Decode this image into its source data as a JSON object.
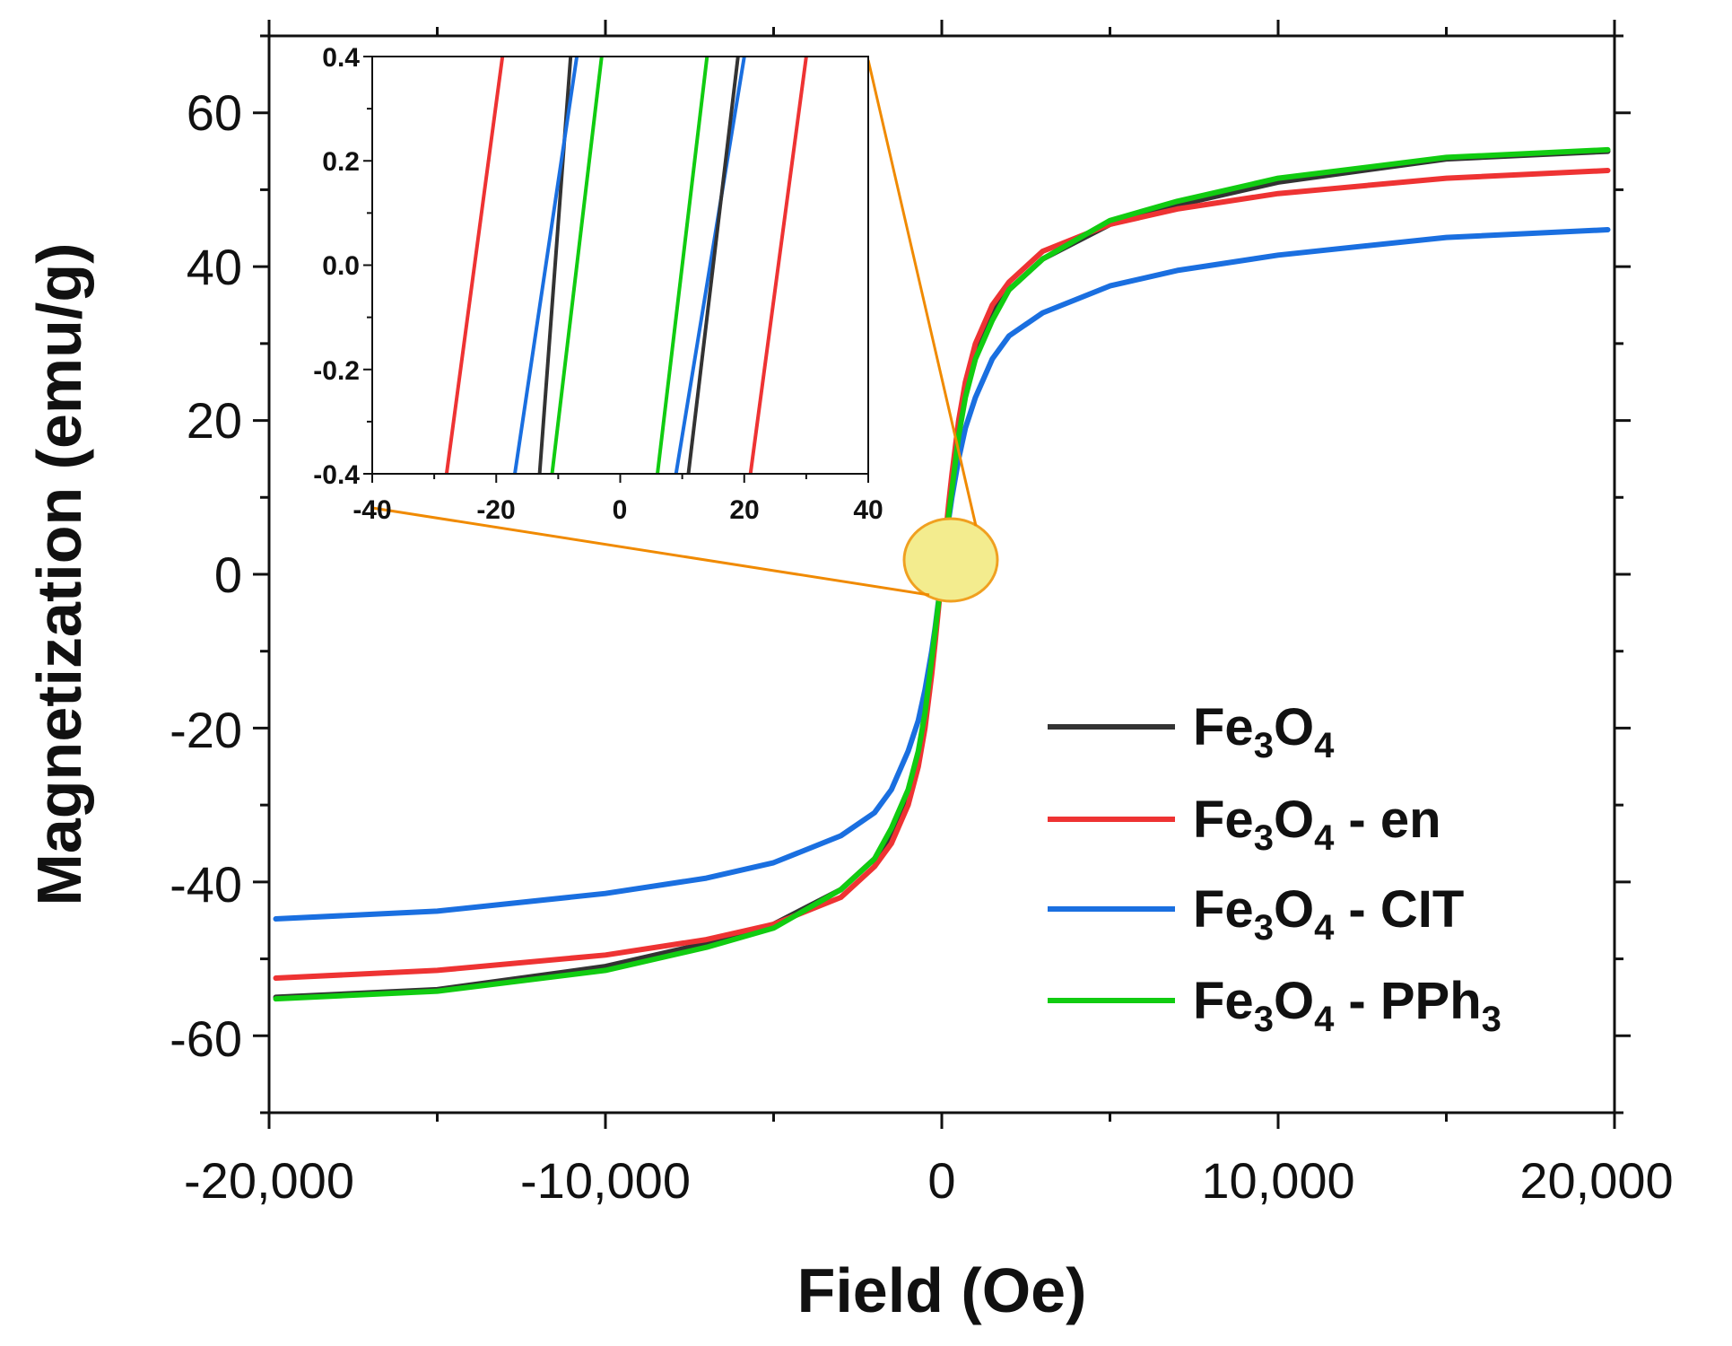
{
  "chart_data": {
    "type": "line",
    "title": "",
    "xlabel": "Field (Oe)",
    "ylabel": "Magnetization (emu/g)",
    "xlim": [
      -20000,
      20000
    ],
    "ylim": [
      -70,
      70
    ],
    "xticks": [
      -20000,
      -10000,
      0,
      10000,
      20000
    ],
    "xtick_labels": [
      "-20,000",
      "-10,000",
      "0",
      "10,000",
      "20,000"
    ],
    "yticks": [
      -60,
      -40,
      -20,
      0,
      20,
      40,
      60
    ],
    "ytick_labels": [
      "-60",
      "-40",
      "-20",
      "0",
      "20",
      "40",
      "60"
    ],
    "legend_position": "bottom-right",
    "grid": false,
    "series": [
      {
        "name": "Fe3O4",
        "label_parts": [
          "Fe",
          "3",
          "O",
          "4",
          ""
        ],
        "color": "#333333",
        "x": [
          -19800,
          -15000,
          -10000,
          -7000,
          -5000,
          -3000,
          -2000,
          -1500,
          -1000,
          -700,
          -500,
          -300,
          -200,
          -100,
          0,
          100,
          200,
          300,
          500,
          700,
          1000,
          1500,
          2000,
          3000,
          5000,
          7000,
          10000,
          15000,
          19800
        ],
        "y": [
          -55,
          -54,
          -51,
          -48,
          -45.5,
          -41,
          -37,
          -34,
          -29,
          -24,
          -19,
          -12,
          -8,
          -4,
          0,
          4,
          8,
          12,
          19,
          24,
          29,
          34,
          37,
          41,
          45.5,
          48,
          51,
          54,
          55
        ]
      },
      {
        "name": "Fe3O4 - en",
        "label_parts": [
          "Fe",
          "3",
          "O",
          "4",
          " - en"
        ],
        "color": "#ee3333",
        "x": [
          -19800,
          -15000,
          -10000,
          -7000,
          -5000,
          -3000,
          -2000,
          -1500,
          -1000,
          -700,
          -500,
          -300,
          -200,
          -100,
          0,
          100,
          200,
          300,
          500,
          700,
          1000,
          1500,
          2000,
          3000,
          5000,
          7000,
          10000,
          15000,
          19800
        ],
        "y": [
          -52.5,
          -51.5,
          -49.5,
          -47.5,
          -45.5,
          -42,
          -38,
          -35,
          -30,
          -25,
          -20,
          -13,
          -9,
          -4.5,
          0,
          4.5,
          9,
          13,
          20,
          25,
          30,
          35,
          38,
          42,
          45.5,
          47.5,
          49.5,
          51.5,
          52.5
        ]
      },
      {
        "name": "Fe3O4 - CIT",
        "label_parts": [
          "Fe",
          "3",
          "O",
          "4",
          " - CIT"
        ],
        "color": "#1a6fe0",
        "x": [
          -19800,
          -15000,
          -10000,
          -7000,
          -5000,
          -3000,
          -2000,
          -1500,
          -1000,
          -700,
          -500,
          -300,
          -200,
          -100,
          0,
          100,
          200,
          300,
          500,
          700,
          1000,
          1500,
          2000,
          3000,
          5000,
          7000,
          10000,
          15000,
          19800
        ],
        "y": [
          -44.8,
          -43.8,
          -41.5,
          -39.5,
          -37.5,
          -34,
          -31,
          -28,
          -23,
          -19,
          -15,
          -10,
          -7,
          -3.5,
          0,
          3.5,
          7,
          10,
          15,
          19,
          23,
          28,
          31,
          34,
          37.5,
          39.5,
          41.5,
          43.8,
          44.8
        ]
      },
      {
        "name": "Fe3O4 - PPh3",
        "label_parts": [
          "Fe",
          "3",
          "O",
          "4",
          " - PPh",
          "3"
        ],
        "color": "#11cc11",
        "x": [
          -19800,
          -15000,
          -10000,
          -7000,
          -5000,
          -3000,
          -2000,
          -1500,
          -1000,
          -700,
          -500,
          -300,
          -200,
          -100,
          0,
          100,
          200,
          300,
          500,
          700,
          1000,
          1500,
          2000,
          3000,
          5000,
          7000,
          10000,
          15000,
          19800
        ],
        "y": [
          -55.2,
          -54.2,
          -51.5,
          -48.5,
          -46,
          -41,
          -37,
          -33,
          -28,
          -23,
          -18,
          -11,
          -7.5,
          -3.8,
          0,
          3.8,
          7.5,
          11,
          18,
          23,
          28,
          33,
          37,
          41,
          46,
          48.5,
          51.5,
          54.2,
          55.2
        ]
      }
    ],
    "inset": {
      "xlim": [
        -40,
        40
      ],
      "ylim": [
        -0.4,
        0.4
      ],
      "xticks": [
        -40,
        -20,
        0,
        20,
        40
      ],
      "xtick_labels": [
        "-40",
        "-20",
        "0",
        "20",
        "40"
      ],
      "yticks": [
        -0.4,
        -0.2,
        0.0,
        0.2,
        0.4
      ],
      "ytick_labels": [
        "-0.4",
        "-0.2",
        "0.0",
        "0.2",
        "0.4"
      ],
      "lines": [
        {
          "series": "Fe3O4 - en",
          "color": "#ee3333",
          "x": [
            -28,
            -19
          ]
        },
        {
          "series": "Fe3O4",
          "color": "#333333",
          "x": [
            -13,
            -8
          ]
        },
        {
          "series": "Fe3O4 - CIT",
          "color": "#1a6fe0",
          "x": [
            -17,
            -7
          ]
        },
        {
          "series": "Fe3O4 - PPh3",
          "color": "#11cc11",
          "x": [
            -11,
            -3
          ]
        },
        {
          "series": "Fe3O4 - PPh3",
          "color": "#11cc11",
          "x": [
            6,
            14
          ]
        },
        {
          "series": "Fe3O4 - CIT",
          "color": "#1a6fe0",
          "x": [
            9,
            20
          ]
        },
        {
          "series": "Fe3O4",
          "color": "#333333",
          "x": [
            11,
            19
          ]
        },
        {
          "series": "Fe3O4 - en",
          "color": "#ee3333",
          "x": [
            21,
            30
          ]
        }
      ],
      "line_y": [
        -0.4,
        0.4
      ],
      "highlight": {
        "fill": "#f3ec8e",
        "stroke": "#f0a020"
      },
      "connector_color": "#f08a00"
    }
  }
}
